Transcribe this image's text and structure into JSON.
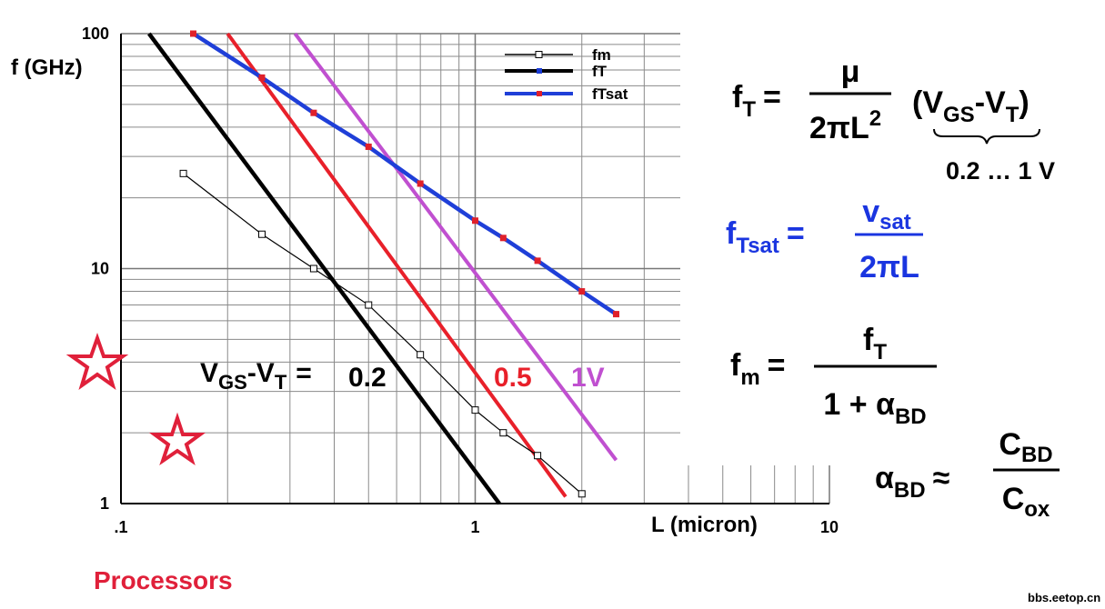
{
  "chart_data": {
    "type": "line",
    "x_scale": "log",
    "y_scale": "log",
    "y_label": "f (GHz)",
    "x_label": "L (micron)",
    "xlim": [
      0.1,
      10
    ],
    "ylim": [
      1,
      100
    ],
    "xticks": [
      {
        "value": 0.1,
        "label": ".1"
      },
      1,
      10
    ],
    "yticks": [
      1,
      10,
      100
    ],
    "grid": true,
    "legend": "top-right",
    "series": [
      {
        "name": "fm",
        "color": "#000000",
        "marker": "square-open",
        "x": [
          0.15,
          0.25,
          0.35,
          0.5,
          0.7,
          1,
          1.2,
          1.5,
          2
        ],
        "values": [
          25.4,
          14,
          10,
          7,
          4.3,
          2.5,
          2,
          1.6,
          1.1
        ]
      },
      {
        "name": "fT",
        "color": "#000000",
        "marker_color": "#1a3bd6",
        "label": "0.2",
        "x": [
          0.12,
          1.17
        ],
        "values": [
          100,
          1
        ]
      },
      {
        "name": "fTsat",
        "color": "#1f3fd8",
        "marker": "square",
        "marker_color": "#e0202a",
        "x": [
          0.16,
          0.25,
          0.35,
          0.5,
          0.7,
          1,
          1.2,
          1.5,
          2,
          2.5
        ],
        "values": [
          100,
          65,
          46,
          33,
          23,
          16,
          13.5,
          10.8,
          8,
          6.4
        ]
      }
    ],
    "vgs_lines": [
      {
        "label": "0.5",
        "color": "#e8202a",
        "x": [
          0.2,
          1.8
        ],
        "values": [
          100,
          1.07
        ]
      },
      {
        "label": "1V",
        "color": "#c050d0",
        "x": [
          0.31,
          2.5
        ],
        "values": [
          100,
          1.53
        ]
      }
    ],
    "annotation": [
      "V",
      "GS",
      "-V",
      "T",
      "="
    ]
  },
  "equations": [
    {
      "lhs": [
        "f",
        "T",
        "="
      ],
      "num": [
        "μ"
      ],
      "den": [
        "2πL",
        "2"
      ],
      "factor": [
        "(V",
        "GS",
        "-V",
        "T",
        ")"
      ],
      "brace_label": "0.2 … 1 V"
    },
    {
      "lhs": [
        "f",
        "Tsat",
        "="
      ],
      "num": [
        "v",
        "sat"
      ],
      "den": [
        "2πL"
      ],
      "color": "#1a35e0"
    },
    {
      "lhs": [
        "f",
        "m",
        "="
      ],
      "num": [
        "f",
        "T"
      ],
      "den": [
        "1 + α",
        "BD"
      ]
    },
    {
      "lhs": [
        "α",
        "BD",
        "≈"
      ],
      "num": [
        "C",
        "BD"
      ],
      "den": [
        "C",
        "ox"
      ]
    }
  ],
  "caption": "Processors",
  "watermark": "bbs.eetop.cn"
}
